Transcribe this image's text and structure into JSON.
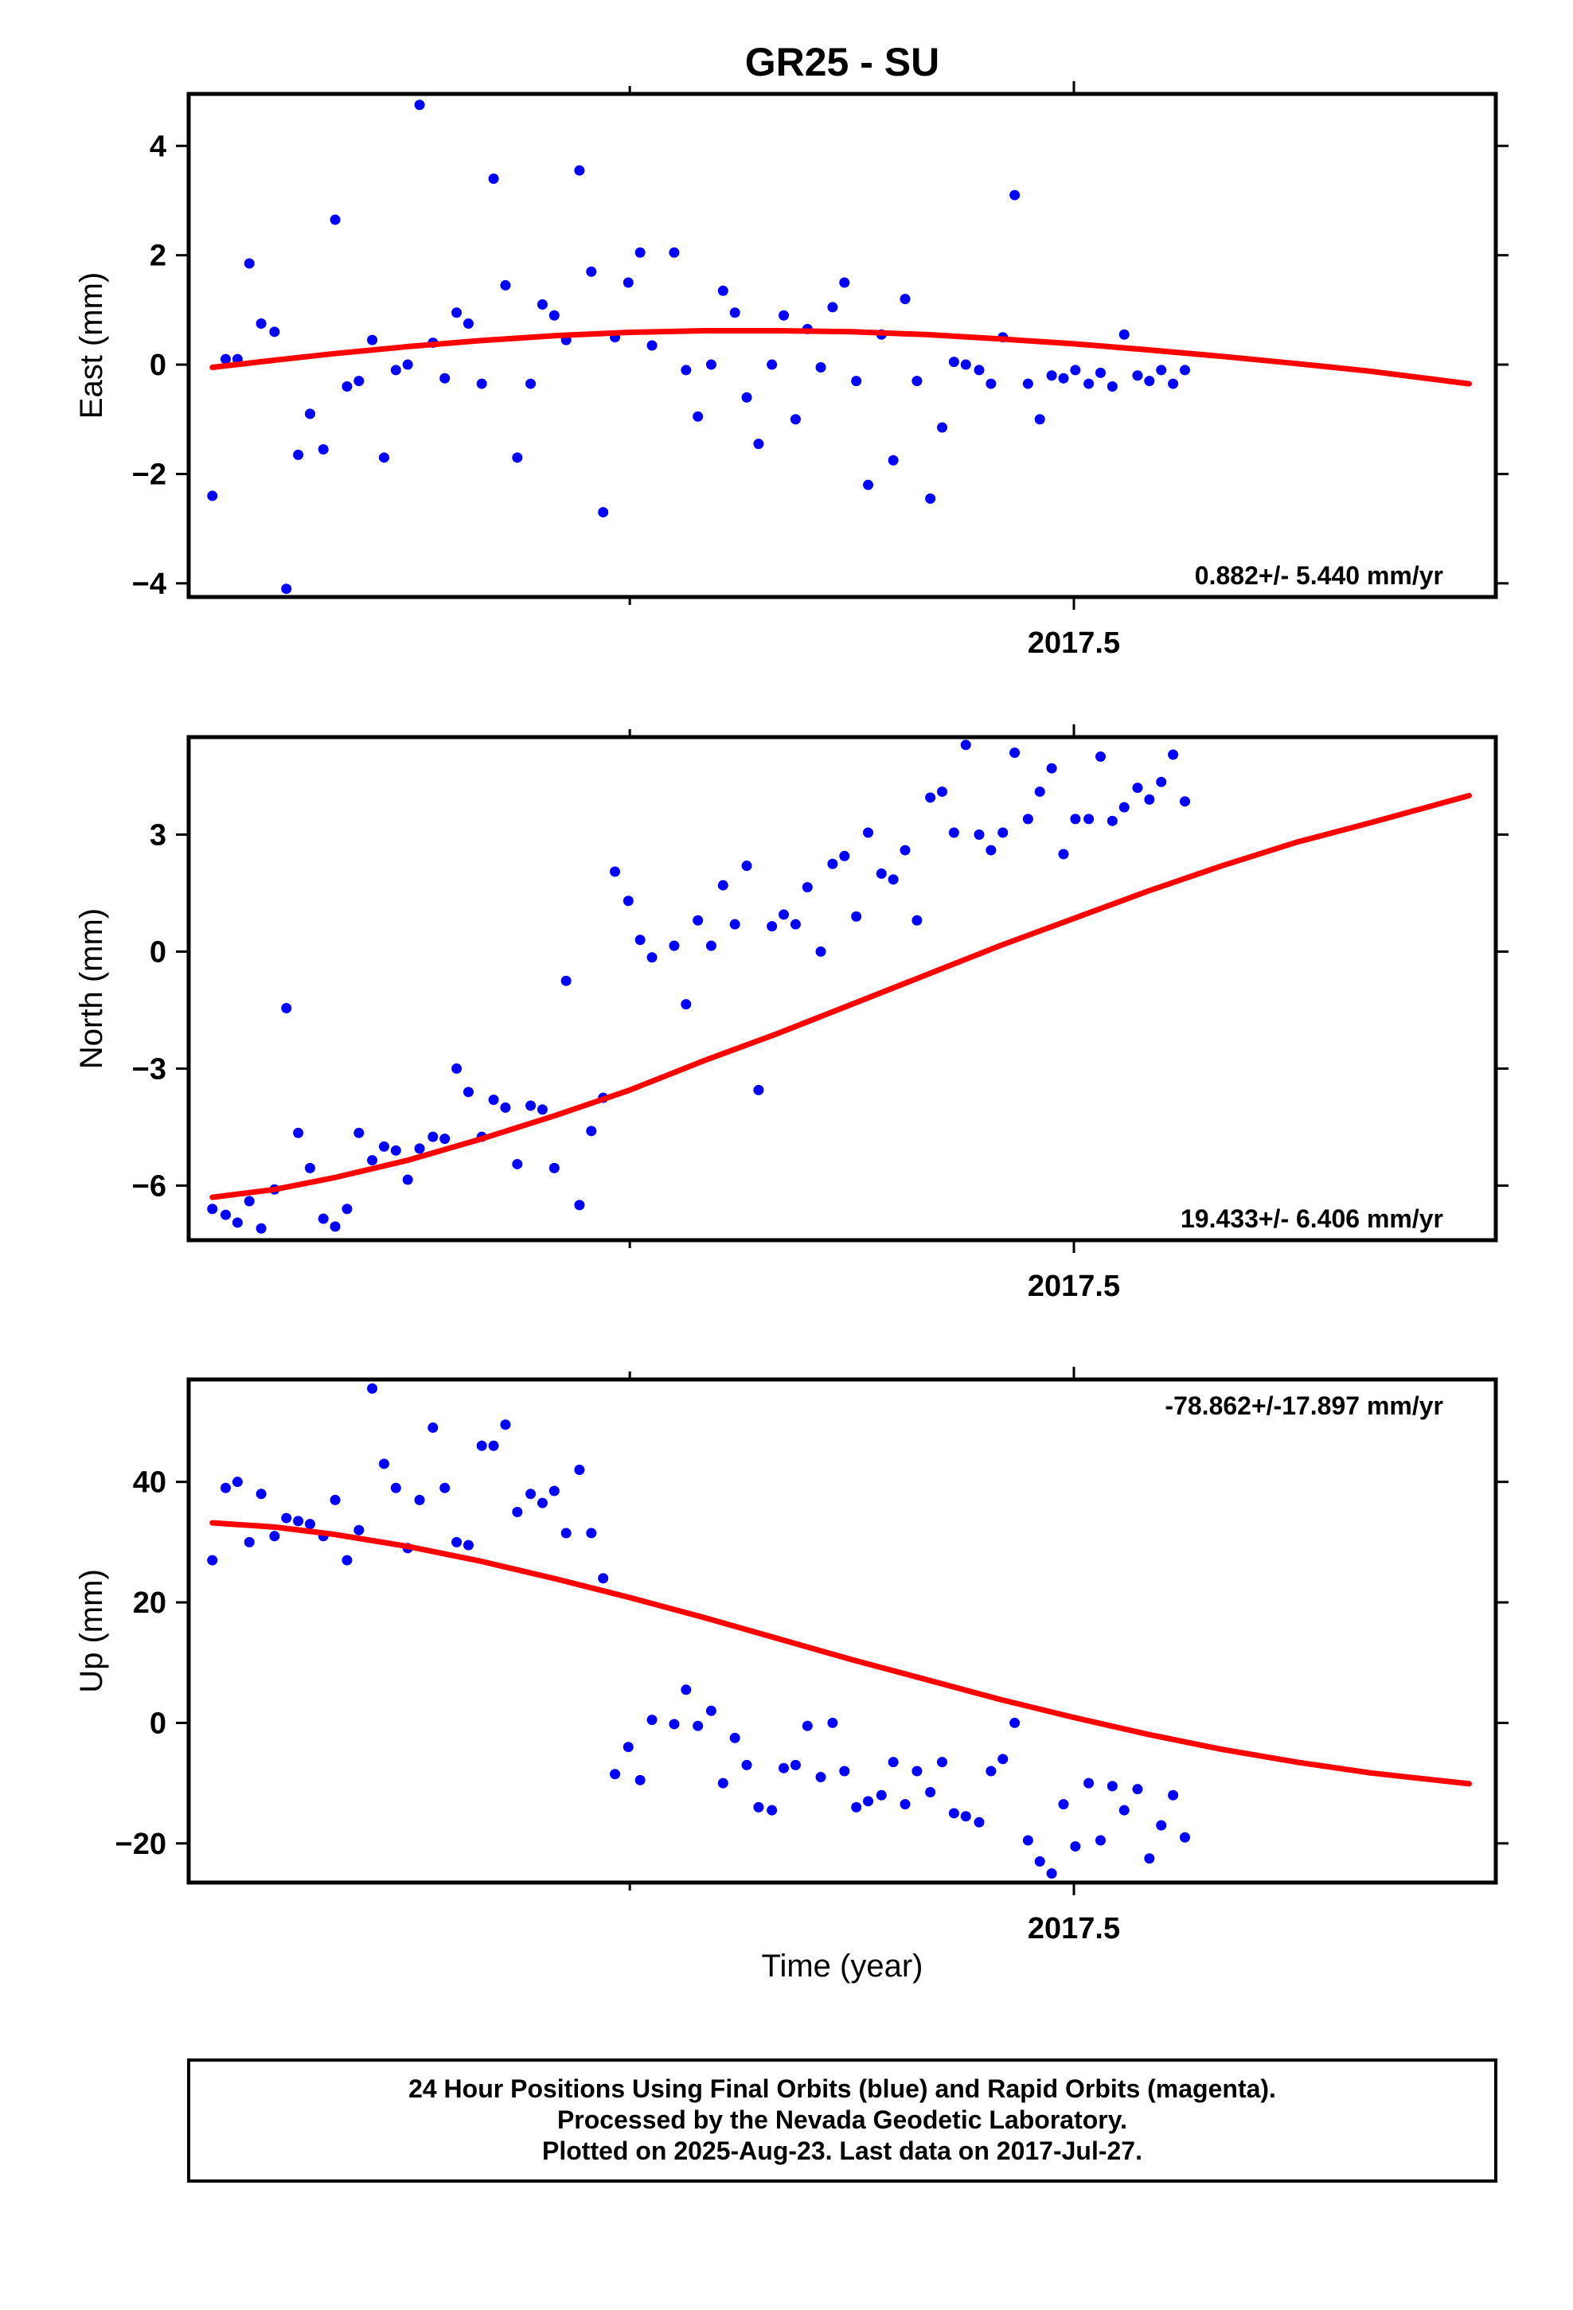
{
  "title": "GR25 - SU",
  "xlabel": "Time (year)",
  "footer": {
    "lines": [
      "24 Hour Positions Using Final Orbits (blue) and Rapid Orbits (magenta).",
      "Processed by the Nevada Geodetic Laboratory.",
      "Plotted on 2025-Aug-23. Last data on 2017-Jul-27."
    ]
  },
  "colors": {
    "points": "#0000ff",
    "fit": "#ff0000",
    "frame": "#000000"
  },
  "chart_data": [
    {
      "type": "scatter",
      "ylabel": "East (mm)",
      "rate_label": "0.882+/- 5.440 mm/yr",
      "xlim": [
        2016.902,
        2017.785
      ],
      "ylim": [
        -4.25,
        4.95
      ],
      "xticks_major": [
        2017.5
      ],
      "xtick_labels": [
        "2017.5"
      ],
      "xticks_minor": [
        2017.2
      ],
      "yticks": [
        -4,
        -2,
        0,
        2,
        4
      ],
      "ytick_labels": [
        "−4",
        "−2",
        "0",
        "2",
        "4"
      ],
      "series": [
        {
          "kind": "points",
          "x": [
            2016.918,
            2016.927,
            2016.935,
            2016.943,
            2016.951,
            2016.96,
            2016.968,
            2016.976,
            2016.984,
            2016.993,
            2017.001,
            2017.009,
            2017.017,
            2017.026,
            2017.034,
            2017.042,
            2017.05,
            2017.058,
            2017.067,
            2017.075,
            2017.083,
            2017.091,
            2017.1,
            2017.108,
            2017.116,
            2017.124,
            2017.133,
            2017.141,
            2017.149,
            2017.157,
            2017.166,
            2017.174,
            2017.182,
            2017.19,
            2017.199,
            2017.207,
            2017.215,
            2017.23,
            2017.238,
            2017.246,
            2017.255,
            2017.263,
            2017.271,
            2017.279,
            2017.287,
            2017.296,
            2017.304,
            2017.312,
            2017.32,
            2017.329,
            2017.337,
            2017.345,
            2017.353,
            2017.361,
            2017.37,
            2017.378,
            2017.386,
            2017.394,
            2017.403,
            2017.411,
            2017.419,
            2017.427,
            2017.436,
            2017.444,
            2017.452,
            2017.46,
            2017.469,
            2017.477,
            2017.485,
            2017.493,
            2017.501,
            2017.51,
            2017.518,
            2017.526,
            2017.534,
            2017.543,
            2017.551,
            2017.559,
            2017.567,
            2017.575
          ],
          "y": [
            -2.4,
            0.1,
            0.1,
            1.85,
            0.75,
            0.6,
            -4.1,
            -1.65,
            -0.9,
            -1.55,
            2.65,
            -0.4,
            -0.3,
            0.45,
            -1.7,
            -0.1,
            0.0,
            4.75,
            0.4,
            -0.25,
            0.95,
            0.75,
            -0.35,
            3.4,
            1.45,
            -1.7,
            -0.35,
            1.1,
            0.9,
            0.45,
            3.55,
            1.7,
            -2.7,
            0.5,
            1.5,
            2.05,
            0.35,
            2.05,
            -0.1,
            -0.95,
            0.0,
            1.35,
            0.95,
            -0.6,
            -1.45,
            0.0,
            0.9,
            -1.0,
            0.65,
            -0.05,
            1.05,
            1.5,
            -0.3,
            -2.2,
            0.55,
            -1.75,
            1.2,
            -0.3,
            -2.45,
            -1.15,
            0.05,
            0.0,
            -0.1,
            -0.35,
            0.5,
            3.1,
            -0.35,
            -1.0,
            -0.2,
            -0.25,
            -0.1,
            -0.35,
            -0.15,
            -0.4,
            0.55,
            -0.2,
            -0.3,
            -0.1,
            -0.35,
            -0.1
          ]
        },
        {
          "kind": "fit",
          "x": [
            2016.918,
            2016.96,
            2017.0,
            2017.05,
            2017.1,
            2017.15,
            2017.2,
            2017.25,
            2017.3,
            2017.35,
            2017.4,
            2017.45,
            2017.5,
            2017.55,
            2017.6,
            2017.65,
            2017.7,
            2017.767
          ],
          "y": [
            -0.05,
            0.08,
            0.2,
            0.33,
            0.44,
            0.53,
            0.59,
            0.62,
            0.62,
            0.6,
            0.55,
            0.47,
            0.38,
            0.27,
            0.15,
            0.02,
            -0.12,
            -0.35
          ]
        }
      ]
    },
    {
      "type": "scatter",
      "ylabel": "North (mm)",
      "rate_label": "19.433+/- 6.406 mm/yr",
      "xlim": [
        2016.902,
        2017.785
      ],
      "ylim": [
        -7.4,
        5.5
      ],
      "xticks_major": [
        2017.5
      ],
      "xtick_labels": [
        "2017.5"
      ],
      "xticks_minor": [
        2017.2
      ],
      "yticks": [
        -6,
        -3,
        0,
        3
      ],
      "ytick_labels": [
        "−6",
        "−3",
        "0",
        "3"
      ],
      "series": [
        {
          "kind": "points",
          "x": [
            2016.918,
            2016.927,
            2016.935,
            2016.943,
            2016.951,
            2016.96,
            2016.968,
            2016.976,
            2016.984,
            2016.993,
            2017.001,
            2017.009,
            2017.017,
            2017.026,
            2017.034,
            2017.042,
            2017.05,
            2017.058,
            2017.067,
            2017.075,
            2017.083,
            2017.091,
            2017.1,
            2017.108,
            2017.116,
            2017.124,
            2017.133,
            2017.141,
            2017.149,
            2017.157,
            2017.166,
            2017.174,
            2017.182,
            2017.19,
            2017.199,
            2017.207,
            2017.215,
            2017.23,
            2017.238,
            2017.246,
            2017.255,
            2017.263,
            2017.271,
            2017.279,
            2017.287,
            2017.296,
            2017.304,
            2017.312,
            2017.32,
            2017.329,
            2017.337,
            2017.345,
            2017.353,
            2017.361,
            2017.37,
            2017.378,
            2017.386,
            2017.394,
            2017.403,
            2017.411,
            2017.419,
            2017.427,
            2017.436,
            2017.444,
            2017.452,
            2017.46,
            2017.469,
            2017.477,
            2017.485,
            2017.493,
            2017.501,
            2017.51,
            2017.518,
            2017.526,
            2017.534,
            2017.543,
            2017.551,
            2017.559,
            2017.567,
            2017.575
          ],
          "y": [
            -6.6,
            -6.75,
            -6.95,
            -6.4,
            -7.1,
            -6.1,
            -1.45,
            -4.65,
            -5.55,
            -6.85,
            -7.05,
            -6.6,
            -4.65,
            -5.35,
            -5.0,
            -5.1,
            -5.85,
            -5.05,
            -4.75,
            -4.8,
            -3.0,
            -3.6,
            -4.75,
            -3.8,
            -4.0,
            -5.45,
            -3.95,
            -4.05,
            -5.55,
            -0.75,
            -6.5,
            -4.6,
            -3.75,
            2.05,
            1.3,
            0.3,
            -0.15,
            0.15,
            -1.35,
            0.8,
            0.15,
            1.7,
            0.7,
            2.2,
            -3.55,
            0.65,
            0.95,
            0.7,
            1.65,
            0.0,
            2.25,
            2.45,
            0.9,
            3.05,
            2.0,
            1.85,
            2.6,
            0.8,
            3.95,
            4.1,
            3.05,
            5.3,
            3.0,
            2.6,
            3.05,
            5.1,
            3.4,
            4.1,
            4.7,
            2.5,
            3.4,
            3.4,
            5.0,
            3.35,
            3.7,
            4.2,
            3.9,
            4.35,
            5.05,
            3.85
          ]
        },
        {
          "kind": "fit",
          "x": [
            2016.918,
            2016.96,
            2017.0,
            2017.05,
            2017.1,
            2017.15,
            2017.2,
            2017.25,
            2017.3,
            2017.35,
            2017.4,
            2017.45,
            2017.5,
            2017.55,
            2017.6,
            2017.65,
            2017.7,
            2017.767
          ],
          "y": [
            -6.3,
            -6.1,
            -5.8,
            -5.35,
            -4.8,
            -4.2,
            -3.55,
            -2.8,
            -2.1,
            -1.35,
            -0.6,
            0.15,
            0.85,
            1.55,
            2.2,
            2.8,
            3.3,
            4.0
          ]
        }
      ]
    },
    {
      "type": "scatter",
      "ylabel": "Up (mm)",
      "rate_label": "-78.862+/-17.897 mm/yr",
      "xlim": [
        2016.902,
        2017.785
      ],
      "ylim": [
        -26.5,
        57
      ],
      "xticks_major": [
        2017.5
      ],
      "xtick_labels": [
        "2017.5"
      ],
      "xticks_minor": [
        2017.2
      ],
      "yticks": [
        -20,
        0,
        20,
        40
      ],
      "ytick_labels": [
        "−20",
        "0",
        "20",
        "40"
      ],
      "series": [
        {
          "kind": "points",
          "x": [
            2016.918,
            2016.927,
            2016.935,
            2016.943,
            2016.951,
            2016.96,
            2016.968,
            2016.976,
            2016.984,
            2016.993,
            2017.001,
            2017.009,
            2017.017,
            2017.026,
            2017.034,
            2017.042,
            2017.05,
            2017.058,
            2017.067,
            2017.075,
            2017.083,
            2017.091,
            2017.1,
            2017.108,
            2017.116,
            2017.124,
            2017.133,
            2017.141,
            2017.149,
            2017.157,
            2017.166,
            2017.174,
            2017.182,
            2017.19,
            2017.199,
            2017.207,
            2017.215,
            2017.23,
            2017.238,
            2017.246,
            2017.255,
            2017.263,
            2017.271,
            2017.279,
            2017.287,
            2017.296,
            2017.304,
            2017.312,
            2017.32,
            2017.329,
            2017.337,
            2017.345,
            2017.353,
            2017.361,
            2017.37,
            2017.378,
            2017.386,
            2017.394,
            2017.403,
            2017.411,
            2017.419,
            2017.427,
            2017.436,
            2017.444,
            2017.452,
            2017.46,
            2017.469,
            2017.477,
            2017.485,
            2017.493,
            2017.501,
            2017.51,
            2017.518,
            2017.526,
            2017.534,
            2017.543,
            2017.551,
            2017.559,
            2017.567,
            2017.575
          ],
          "y": [
            27,
            39,
            40,
            30,
            38,
            31,
            34,
            33.5,
            33,
            31,
            37,
            27,
            32,
            55.5,
            43,
            39,
            29,
            37,
            49,
            39,
            30,
            29.5,
            46,
            46,
            49.5,
            35,
            38,
            36.5,
            38.5,
            31.5,
            42,
            31.5,
            24,
            -8.5,
            -4,
            -9.5,
            0.5,
            -0.2,
            5.5,
            -0.5,
            2,
            -10,
            -2.5,
            -7,
            -14,
            -14.5,
            -7.5,
            -7,
            -0.5,
            -9,
            0,
            -8,
            -14,
            -13,
            -12,
            -6.5,
            -13.5,
            -8,
            -11.5,
            -6.5,
            -15,
            -15.5,
            -16.5,
            -8,
            -6,
            0,
            -19.5,
            -23,
            -25,
            -13.5,
            -20.5,
            -10,
            -19.5,
            -10.5,
            -14.5,
            -11,
            -22.5,
            -17,
            -12,
            -19
          ]
        },
        {
          "kind": "fit",
          "x": [
            2016.918,
            2016.96,
            2017.0,
            2017.05,
            2017.1,
            2017.15,
            2017.2,
            2017.25,
            2017.3,
            2017.35,
            2017.4,
            2017.45,
            2017.5,
            2017.55,
            2017.6,
            2017.65,
            2017.7,
            2017.767
          ],
          "y": [
            33.2,
            32.5,
            31.3,
            29.3,
            26.8,
            23.9,
            20.8,
            17.5,
            14.0,
            10.5,
            7.2,
            3.9,
            0.9,
            -1.9,
            -4.4,
            -6.5,
            -8.3,
            -10.1
          ]
        }
      ]
    }
  ]
}
